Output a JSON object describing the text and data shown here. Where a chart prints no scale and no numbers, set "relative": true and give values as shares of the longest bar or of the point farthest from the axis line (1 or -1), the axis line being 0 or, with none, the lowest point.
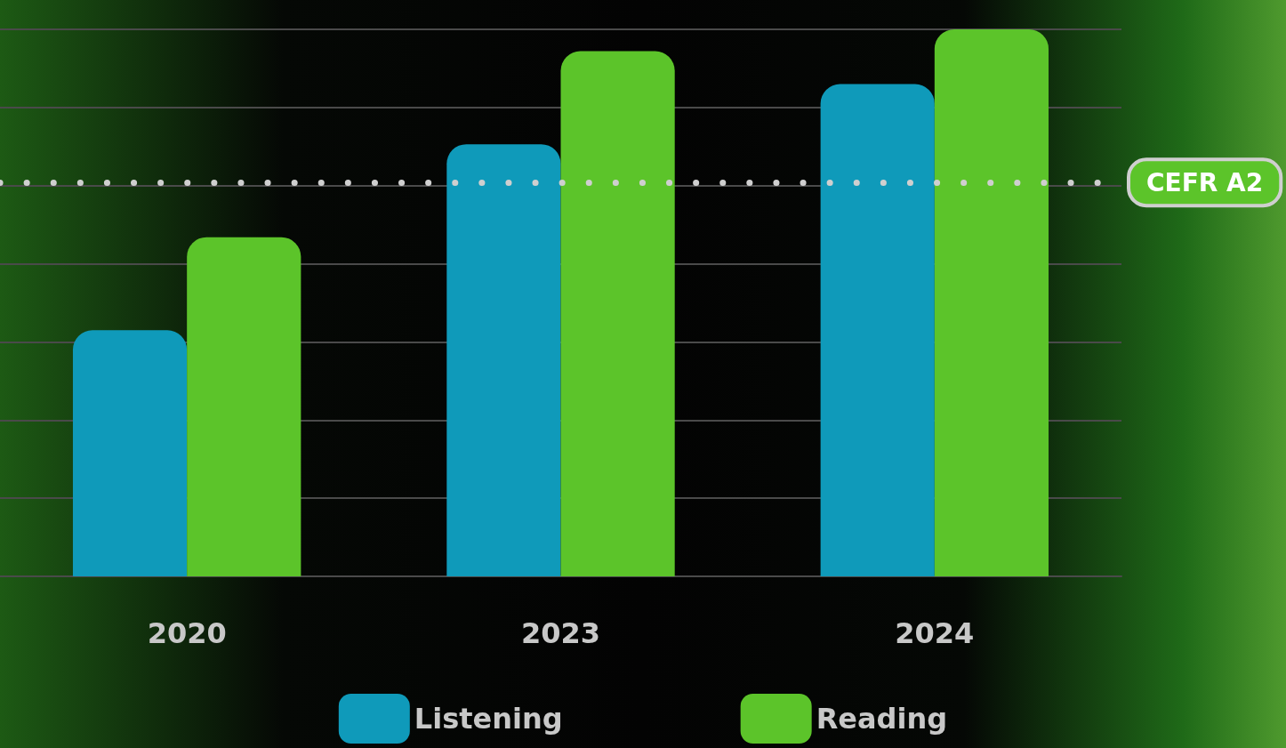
{
  "chart_data": {
    "type": "bar",
    "relative": true,
    "categories": [
      "2020",
      "2023",
      "2024"
    ],
    "series": [
      {
        "name": "Listening",
        "color": "#0f9aba",
        "values": [
          0.45,
          0.79,
          0.9
        ]
      },
      {
        "name": "Reading",
        "color": "#5cc42a",
        "values": [
          0.62,
          0.96,
          1
        ]
      }
    ],
    "ref_lines": [
      {
        "axis": "y",
        "value": 0.72,
        "label": "CEFR A2",
        "color": "#cfcfcf",
        "line_style": "dotted"
      }
    ],
    "grid": "y",
    "legend": "bottom"
  }
}
